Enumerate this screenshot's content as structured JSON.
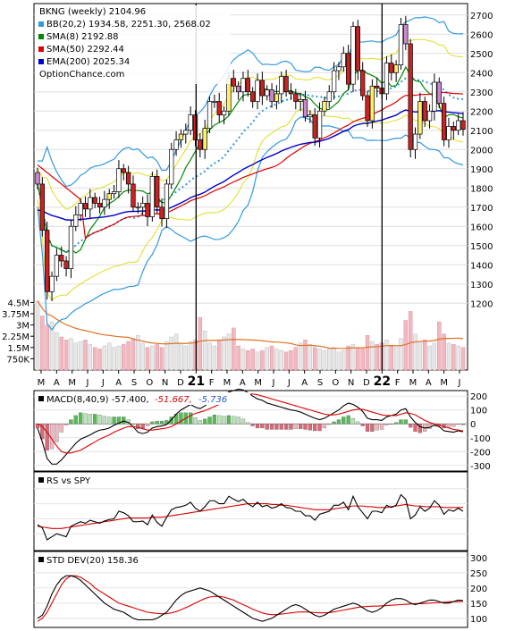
{
  "chart_data": [
    {
      "type": "candlestick",
      "panel": "price",
      "x_tick_labels": [
        "M",
        "A",
        "M",
        "J",
        "J",
        "A",
        "S",
        "O",
        "N",
        "D",
        "21",
        "F",
        "M",
        "A",
        "M",
        "J",
        "J",
        "A",
        "S",
        "O",
        "N",
        "D",
        "22",
        "F",
        "M",
        "A",
        "M",
        "J"
      ],
      "y_tick_labels": [
        "1200",
        "1300",
        "1400",
        "1500",
        "1600",
        "1700",
        "1800",
        "1900",
        "2000",
        "2100",
        "2200",
        "2300",
        "2400",
        "2500",
        "2600",
        "2700"
      ],
      "ylim": [
        1150,
        2750
      ],
      "volume_tick_labels": [
        "4.5M",
        "3.75M",
        "3M",
        "2.25M",
        "1.5M",
        "750K"
      ],
      "volume_ylim": [
        0,
        5000000
      ],
      "legend": [
        {
          "text": "BKNG (weekly) 2104.96",
          "color": ""
        },
        {
          "text": "BB(20,2) 1934.58, 2251.30, 2568.02",
          "color": "#3399dd"
        },
        {
          "text": "SMA(8) 2192.88",
          "color": "#008800"
        },
        {
          "text": "SMA(50) 2292.44",
          "color": "#dd0000"
        },
        {
          "text": "EMA(200) 2025.34",
          "color": "#0000cc"
        },
        {
          "text": "OptionChance.com",
          "color": ""
        }
      ],
      "close": [
        1820,
        1580,
        1260,
        1340,
        1450,
        1420,
        1380,
        1600,
        1660,
        1720,
        1690,
        1750,
        1720,
        1700,
        1740,
        1770,
        1780,
        1900,
        1880,
        1820,
        1700,
        1700,
        1720,
        1650,
        1860,
        1700,
        1640,
        1820,
        2000,
        2050,
        2080,
        2100,
        2180,
        2050,
        2000,
        2110,
        2250,
        2250,
        2180,
        2200,
        2370,
        2330,
        2300,
        2370,
        2300,
        2250,
        2360,
        2280,
        2310,
        2250,
        2290,
        2380,
        2300,
        2290,
        2250,
        2260,
        2170,
        2180,
        2060,
        2200,
        2250,
        2300,
        2410,
        2430,
        2500,
        2340,
        2640,
        2410,
        2280,
        2150,
        2330,
        2320,
        2290,
        2450,
        2400,
        2440,
        2650,
        2550,
        2000,
        2080,
        2250,
        2150,
        2200,
        2350,
        2240,
        2050,
        2120,
        2100,
        2150,
        2105
      ],
      "volume_m": [
        4.6,
        3.6,
        3.0,
        3.2,
        2.5,
        2.2,
        2.0,
        2.1,
        1.8,
        1.9,
        2.0,
        1.7,
        1.5,
        1.4,
        1.6,
        1.8,
        1.5,
        1.6,
        1.7,
        1.9,
        2.1,
        2.3,
        1.8,
        1.5,
        1.6,
        1.7,
        1.5,
        1.9,
        2.2,
        2.4,
        1.8,
        1.6,
        1.9,
        2.0,
        3.5,
        2.6,
        1.8,
        1.6,
        2.0,
        2.2,
        2.4,
        2.8,
        1.6,
        1.4,
        1.3,
        1.4,
        1.2,
        1.3,
        1.5,
        1.6,
        1.4,
        1.3,
        1.2,
        1.3,
        1.5,
        1.8,
        2.0,
        1.7,
        1.5,
        1.4,
        1.3,
        1.4,
        1.5,
        1.2,
        1.3,
        1.6,
        1.7,
        1.5,
        1.4,
        2.3,
        1.9,
        1.7,
        1.8,
        2.0,
        1.6,
        1.5,
        2.1,
        3.3,
        3.9,
        2.4,
        1.9,
        2.0,
        1.6,
        1.8,
        3.2,
        2.4,
        1.8,
        1.7,
        1.6,
        1.5
      ]
    },
    {
      "type": "line",
      "panel": "macd",
      "label": "MACD(8,40,9) -57.400,",
      "signal_label": "-51.667,",
      "histogram_label": "-5.736",
      "y_tick_labels": [
        "200",
        "100",
        "0",
        "-100",
        "-200",
        "-300"
      ],
      "ylim": [
        -340,
        240
      ],
      "series": [
        {
          "values": [
            -30,
            -130,
            -250,
            -290,
            -290,
            -260,
            -220,
            -180,
            -140,
            -110,
            -95,
            -80,
            -60,
            -45,
            -40,
            -30,
            -10,
            5,
            20,
            10,
            -20,
            -60,
            -70,
            -60,
            -30,
            -20,
            -15,
            -5,
            30,
            70,
            100,
            120,
            140,
            120,
            110,
            130,
            160,
            190,
            200,
            210,
            230,
            240,
            250,
            245,
            225,
            200,
            180,
            170,
            150,
            140,
            130,
            120,
            110,
            100,
            95,
            85,
            70,
            55,
            40,
            30,
            40,
            60,
            80,
            100,
            130,
            150,
            140,
            120,
            90,
            40,
            30,
            30,
            25,
            50,
            60,
            70,
            100,
            110,
            50,
            10,
            -20,
            -30,
            -25,
            -10,
            -20,
            -50,
            -55,
            -60,
            -50,
            -57
          ]
        },
        {
          "values": [
            0,
            -20,
            -60,
            -110,
            -160,
            -200,
            -210,
            -210,
            -200,
            -190,
            -170,
            -150,
            -130,
            -110,
            -95,
            -80,
            -60,
            -45,
            -30,
            -20,
            -20,
            -25,
            -35,
            -45,
            -45,
            -40,
            -35,
            -30,
            -20,
            0,
            20,
            40,
            60,
            75,
            85,
            95,
            110,
            125,
            140,
            155,
            170,
            185,
            200,
            210,
            215,
            215,
            210,
            200,
            190,
            180,
            170,
            160,
            150,
            140,
            130,
            120,
            110,
            100,
            90,
            80,
            70,
            65,
            65,
            70,
            80,
            90,
            100,
            105,
            105,
            95,
            85,
            75,
            65,
            60,
            60,
            60,
            70,
            80,
            75,
            65,
            45,
            25,
            10,
            0,
            -10,
            -20,
            -30,
            -40,
            -45,
            -51
          ]
        }
      ]
    },
    {
      "type": "line",
      "panel": "relative-strength",
      "label": "RS vs SPY",
      "series": [
        {
          "values": [
            0.32,
            0.28,
            0.12,
            0.16,
            0.2,
            0.18,
            0.16,
            0.3,
            0.33,
            0.36,
            0.34,
            0.38,
            0.36,
            0.34,
            0.37,
            0.39,
            0.4,
            0.5,
            0.48,
            0.44,
            0.36,
            0.36,
            0.37,
            0.32,
            0.45,
            0.35,
            0.3,
            0.42,
            0.52,
            0.55,
            0.56,
            0.58,
            0.62,
            0.54,
            0.5,
            0.56,
            0.64,
            0.64,
            0.6,
            0.6,
            0.7,
            0.66,
            0.63,
            0.66,
            0.6,
            0.56,
            0.62,
            0.56,
            0.58,
            0.54,
            0.56,
            0.6,
            0.55,
            0.54,
            0.5,
            0.5,
            0.44,
            0.44,
            0.38,
            0.46,
            0.48,
            0.5,
            0.58,
            0.58,
            0.62,
            0.52,
            0.7,
            0.56,
            0.48,
            0.4,
            0.5,
            0.5,
            0.48,
            0.58,
            0.55,
            0.58,
            0.72,
            0.66,
            0.4,
            0.45,
            0.56,
            0.5,
            0.54,
            0.64,
            0.58,
            0.46,
            0.52,
            0.5,
            0.54,
            0.5
          ]
        },
        {
          "values": [
            0.3,
            0.29,
            0.28,
            0.27,
            0.27,
            0.27,
            0.28,
            0.29,
            0.3,
            0.31,
            0.32,
            0.33,
            0.34,
            0.35,
            0.36,
            0.37,
            0.38,
            0.39,
            0.4,
            0.41,
            0.41,
            0.41,
            0.41,
            0.41,
            0.42,
            0.42,
            0.42,
            0.43,
            0.44,
            0.45,
            0.46,
            0.47,
            0.48,
            0.49,
            0.5,
            0.51,
            0.52,
            0.53,
            0.54,
            0.55,
            0.56,
            0.57,
            0.58,
            0.59,
            0.6,
            0.6,
            0.6,
            0.6,
            0.6,
            0.59,
            0.59,
            0.58,
            0.58,
            0.57,
            0.56,
            0.55,
            0.54,
            0.53,
            0.52,
            0.52,
            0.52,
            0.52,
            0.53,
            0.54,
            0.55,
            0.56,
            0.57,
            0.57,
            0.57,
            0.56,
            0.56,
            0.55,
            0.55,
            0.55,
            0.56,
            0.57,
            0.58,
            0.59,
            0.58,
            0.57,
            0.57,
            0.56,
            0.56,
            0.56,
            0.56,
            0.55,
            0.55,
            0.55,
            0.55,
            0.55
          ]
        }
      ]
    },
    {
      "type": "line",
      "panel": "std-dev",
      "label": "STD DEV(20) 158.36",
      "y_tick_labels": [
        "300",
        "250",
        "200",
        "150",
        "100"
      ],
      "ylim": [
        70,
        320
      ],
      "series": [
        {
          "values": [
            100,
            110,
            140,
            180,
            210,
            230,
            240,
            240,
            235,
            225,
            210,
            195,
            180,
            165,
            150,
            140,
            130,
            125,
            120,
            110,
            100,
            95,
            95,
            95,
            95,
            100,
            110,
            120,
            140,
            160,
            175,
            185,
            190,
            195,
            200,
            195,
            190,
            180,
            170,
            160,
            150,
            140,
            130,
            120,
            110,
            100,
            95,
            90,
            95,
            100,
            110,
            120,
            130,
            140,
            145,
            140,
            130,
            120,
            110,
            105,
            110,
            120,
            130,
            135,
            140,
            145,
            150,
            145,
            135,
            125,
            120,
            125,
            135,
            150,
            160,
            165,
            165,
            160,
            150,
            145,
            150,
            155,
            160,
            160,
            155,
            150,
            150,
            155,
            160,
            158
          ]
        },
        {
          "values": [
            90,
            100,
            120,
            150,
            180,
            210,
            230,
            240,
            240,
            235,
            225,
            215,
            200,
            190,
            180,
            170,
            160,
            150,
            145,
            140,
            135,
            130,
            125,
            120,
            118,
            116,
            115,
            115,
            118,
            122,
            128,
            135,
            142,
            150,
            158,
            165,
            170,
            172,
            172,
            170,
            165,
            160,
            152,
            145,
            138,
            130,
            124,
            118,
            114,
            112,
            112,
            114,
            116,
            118,
            120,
            121,
            121,
            120,
            119,
            118,
            118,
            119,
            121,
            124,
            127,
            130,
            133,
            136,
            138,
            139,
            140,
            140,
            141,
            142,
            143,
            144,
            145,
            146,
            147,
            148,
            148,
            149,
            150,
            151,
            152,
            153,
            154,
            155,
            155,
            156
          ]
        }
      ]
    }
  ]
}
